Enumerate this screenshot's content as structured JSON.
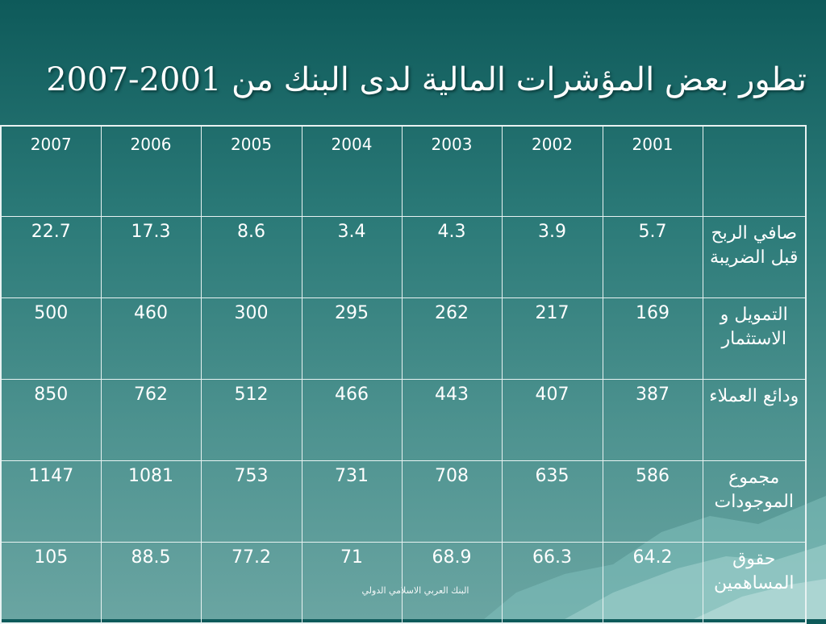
{
  "title": "تطور بعض المؤشرات المالية لدى البنك من 2001-2007",
  "footer": "البنك العربي الاسلامي الدولي",
  "chart_data": {
    "type": "table",
    "columns": [
      "2007",
      "2006",
      "2005",
      "2004",
      "2003",
      "2002",
      "2001"
    ],
    "rows": [
      {
        "label": "صافي الربح قبل الضريبة",
        "values": [
          "22.7",
          "17.3",
          "8.6",
          "3.4",
          "4.3",
          "3.9",
          "5.7"
        ]
      },
      {
        "label": "التمويل و الاستثمار",
        "values": [
          "500",
          "460",
          "300",
          "295",
          "262",
          "217",
          "169"
        ]
      },
      {
        "label": "ودائع العملاء",
        "values": [
          "850",
          "762",
          "512",
          "466",
          "443",
          "407",
          "387"
        ]
      },
      {
        "label": "مجموع الموجودات",
        "values": [
          "1147",
          "1081",
          "753",
          "731",
          "708",
          "635",
          "586"
        ]
      },
      {
        "label": "حقوق المساهمين",
        "values": [
          "105",
          "88.5",
          "77.2",
          "71",
          "68.9",
          "66.3",
          "64.2"
        ]
      }
    ]
  }
}
